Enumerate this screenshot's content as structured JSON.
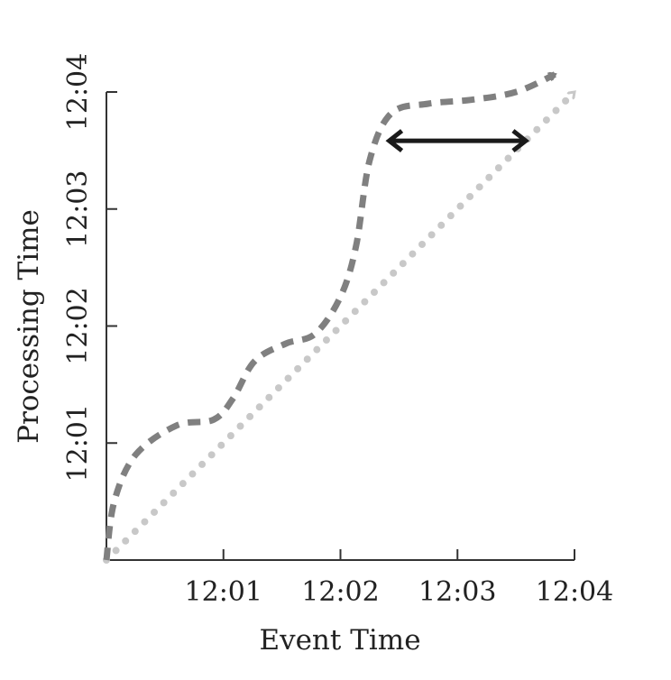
{
  "chart_data": {
    "type": "line",
    "title": "",
    "xlabel": "Event Time",
    "ylabel": "Processing Time",
    "x_ticks": [
      "12:01",
      "12:02",
      "12:03",
      "12:04"
    ],
    "y_ticks": [
      "12:01",
      "12:02",
      "12:03",
      "12:04"
    ],
    "xlim": [
      "12:00",
      "12:04"
    ],
    "ylim": [
      "12:00",
      "12:04"
    ],
    "grid": false,
    "legend": "none",
    "series": [
      {
        "style": "dashed",
        "color": "#808080",
        "points": [
          [
            "12:00:00",
            "12:00:00"
          ],
          [
            "12:00:04",
            "12:00:30"
          ],
          [
            "12:00:15",
            "12:00:54"
          ],
          [
            "12:00:36",
            "12:01:09"
          ],
          [
            "12:00:55",
            "12:01:12"
          ],
          [
            "12:01:05",
            "12:01:23"
          ],
          [
            "12:01:16",
            "12:01:42"
          ],
          [
            "12:01:32",
            "12:01:51"
          ],
          [
            "12:01:47",
            "12:01:56"
          ],
          [
            "12:02:00",
            "12:02:15"
          ],
          [
            "12:02:08",
            "12:02:41"
          ],
          [
            "12:02:15",
            "12:03:25"
          ],
          [
            "12:02:26",
            "12:03:49"
          ],
          [
            "12:02:45",
            "12:03:54"
          ],
          [
            "12:03:07",
            "12:03:56"
          ],
          [
            "12:03:30",
            "12:04:00"
          ],
          [
            "12:03:50",
            "12:04:09"
          ]
        ]
      },
      {
        "style": "dotted",
        "color": "#c8c8c8",
        "points": [
          [
            "12:00:00",
            "12:00:00"
          ],
          [
            "12:04:00",
            "12:04:00"
          ]
        ]
      }
    ],
    "annotations": [
      {
        "type": "double-arrow",
        "color": "#1a1a1a",
        "from": [
          "12:02:25",
          "12:03:35"
        ],
        "to": [
          "12:03:35",
          "12:03:35"
        ]
      }
    ]
  }
}
